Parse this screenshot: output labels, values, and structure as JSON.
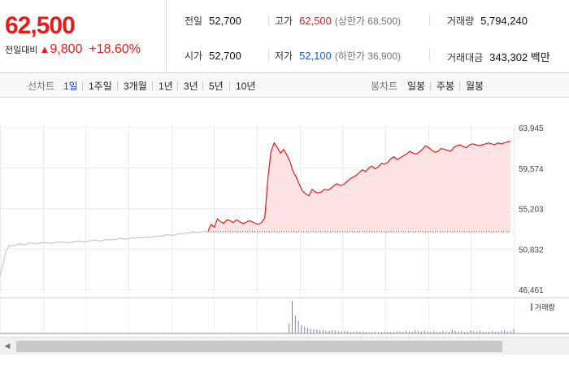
{
  "summary": {
    "current_price": "62,500",
    "change_label": "전일대비",
    "change_icon": "up-triangle-icon",
    "change_amount": "9,800",
    "change_rate": "+18.60%",
    "stats": {
      "prev_close_label": "전일",
      "prev_close": "52,700",
      "high_label": "고가",
      "high": "62,500",
      "upper_limit": "(상한가 68,500)",
      "volume_label": "거래량",
      "volume": "5,794,240",
      "open_label": "시가",
      "open": "52,700",
      "low_label": "저가",
      "low": "52,100",
      "lower_limit": "(하한가 36,900)",
      "amount_label": "거래대금",
      "amount": "343,302 백만"
    }
  },
  "period_bar": {
    "line_label": "선차트",
    "line_periods": [
      "1일",
      "1주일",
      "3개월",
      "1년",
      "3년",
      "5년",
      "10년"
    ],
    "selected_period": "1일",
    "candle_label": "봉차트",
    "candle_periods": [
      "일봉",
      "주봉",
      "월봉"
    ]
  },
  "colors": {
    "up": "#e31c1c",
    "down": "#1a5bd6",
    "prev_session": "#c8c8c8",
    "fill": "#fde3e4",
    "volume": "#8a7bb5"
  },
  "chart_data": {
    "type": "line",
    "ylim": [
      46461,
      63945
    ],
    "y_ticks": [
      63945,
      59574,
      55203,
      50832,
      46461
    ],
    "y_tick_labels": [
      "63,945",
      "59,574",
      "55,203",
      "50,832",
      "46,461"
    ],
    "baseline": 52700,
    "legend_volume": "거래량",
    "series": [
      {
        "values": [
          47900,
          49300,
          50700,
          51250,
          51200,
          51250,
          51400,
          51350,
          51300,
          51450,
          51500,
          51400,
          51450,
          51500,
          51550,
          51500,
          51450,
          51500,
          51600,
          51550,
          51600,
          51550,
          51500,
          51600,
          51650,
          51700,
          51650,
          51600,
          51700,
          51750,
          51800,
          51750,
          51700,
          51800,
          51850,
          51800,
          51850,
          51900,
          52000,
          51950,
          51900,
          52000,
          52050,
          52000,
          52100,
          52050,
          52100,
          52150,
          52100,
          52200,
          52250,
          52200,
          52300,
          52400,
          52350,
          52300,
          52400,
          52500,
          52450,
          52600,
          52550,
          52700,
          52650,
          52600,
          52700,
          52750,
          52650
        ]
      },
      {
        "values": [
          52800,
          53500,
          53200,
          54100,
          53800,
          53600,
          54000,
          53900,
          53700,
          54000,
          53800,
          53600,
          53700,
          53900,
          53800,
          53600,
          53500,
          53700,
          54200,
          58500,
          61400,
          62300,
          61800,
          61200,
          61600,
          61000,
          60300,
          59200,
          58600,
          57800,
          57100,
          56800,
          56600,
          57300,
          57000,
          56900,
          57000,
          57300,
          57200,
          57400,
          57700,
          57900,
          57700,
          57800,
          58100,
          58400,
          58600,
          58800,
          59100,
          59400,
          59200,
          59600,
          59800,
          59500,
          59700,
          60100,
          60000,
          60200,
          60600,
          60800,
          60500,
          60700,
          60900,
          61100,
          61400,
          61200,
          61100,
          61300,
          61600,
          62000,
          61800,
          61500,
          61300,
          61400,
          61700,
          61600,
          61500,
          61400,
          61800,
          62000,
          62100,
          61900,
          61800,
          62100,
          62200,
          62100,
          62000,
          62100,
          62200,
          62300,
          62200,
          62100,
          62300,
          62200,
          62300,
          62400,
          62500
        ]
      }
    ],
    "volume": [
      1,
      1,
      1,
      1,
      1,
      1,
      1,
      1,
      1,
      1,
      1,
      1,
      1,
      1,
      1,
      1,
      1,
      1,
      1,
      1,
      1,
      1,
      1,
      1,
      1,
      1,
      1,
      1,
      1,
      1,
      1,
      1,
      1,
      1,
      1,
      1,
      1,
      1,
      1,
      1,
      1,
      1,
      1,
      1,
      1,
      1,
      1,
      1,
      1,
      1,
      1,
      1,
      1,
      1,
      1,
      1,
      1,
      1,
      1,
      1,
      1,
      1,
      1,
      1,
      1,
      1,
      1,
      1,
      1,
      1,
      1,
      1,
      1,
      2,
      1,
      1,
      1,
      2,
      1,
      1,
      1,
      2,
      1,
      1,
      2,
      1,
      1,
      1,
      2,
      1,
      1,
      1,
      2,
      3,
      30,
      100,
      55,
      40,
      25,
      20,
      18,
      15,
      14,
      12,
      10,
      12,
      9,
      8,
      10,
      8,
      7,
      6,
      8,
      6,
      5,
      6,
      7,
      5,
      6,
      5,
      4,
      5,
      6,
      4,
      5,
      6,
      5,
      4,
      5,
      7,
      6,
      5,
      8,
      6,
      5,
      10,
      7,
      6,
      9,
      6,
      5,
      7,
      6,
      5,
      8,
      6,
      5,
      12,
      8,
      6,
      7,
      5,
      6,
      9,
      7,
      6,
      8,
      6,
      5,
      6,
      7,
      5,
      6,
      8,
      10,
      6,
      7,
      14
    ]
  }
}
